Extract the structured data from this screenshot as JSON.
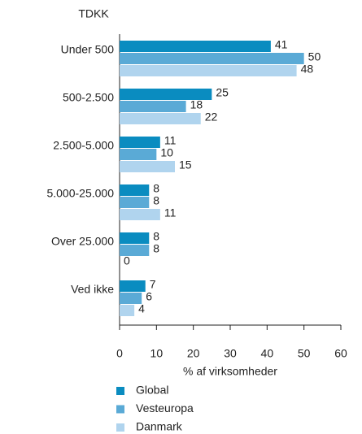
{
  "chart_data": {
    "type": "barh",
    "y_axis_title": "TDKK",
    "x_axis_title": "% af virksomheder",
    "categories": [
      "Under 500",
      "500-2.500",
      "2.500-5.000",
      "5.000-25.000",
      "Over 25.000",
      "Ved ikke"
    ],
    "series": [
      {
        "name": "Global",
        "color": "#0a8cc0",
        "values": [
          41,
          25,
          11,
          8,
          8,
          7
        ]
      },
      {
        "name": "Vesteuropa",
        "color": "#5aaad6",
        "values": [
          50,
          18,
          10,
          8,
          8,
          6
        ]
      },
      {
        "name": "Danmark",
        "color": "#b0d4ee",
        "values": [
          48,
          22,
          15,
          11,
          0,
          4
        ]
      }
    ],
    "xlim": [
      0,
      60
    ],
    "xticks": [
      0,
      10,
      20,
      30,
      40,
      50,
      60
    ]
  }
}
